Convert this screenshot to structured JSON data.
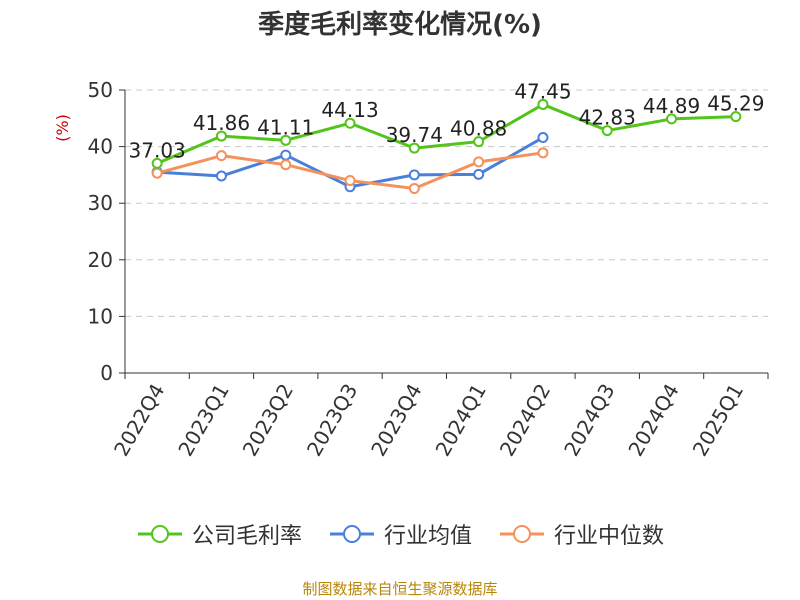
{
  "colors": {
    "gross_margin": "#52c41a",
    "industry_avg": "#4a7fdc",
    "industry_median": "#f5915a",
    "unit_label": "#cc0000",
    "source_text": "#b8860b"
  },
  "source": "制图数据来自恒生聚源数据库",
  "chart_data": {
    "type": "line",
    "title": "季度毛利率变化情况(%)",
    "ylabel": "(%)",
    "xlabel": "",
    "ylim": [
      0,
      50
    ],
    "yticks": [
      0,
      10,
      20,
      30,
      40,
      50
    ],
    "grid": true,
    "legend_position": "bottom",
    "categories": [
      "2022Q4",
      "2023Q1",
      "2023Q2",
      "2023Q3",
      "2023Q4",
      "2024Q1",
      "2024Q2",
      "2024Q3",
      "2024Q4",
      "2025Q1"
    ],
    "series": [
      {
        "name": "公司毛利率",
        "color": "#52c41a",
        "values": [
          37.03,
          41.86,
          41.11,
          44.13,
          39.74,
          40.88,
          47.45,
          42.83,
          44.89,
          45.29
        ],
        "labels": [
          "37.03",
          "41.86",
          "41.11",
          "44.13",
          "39.74",
          "40.88",
          "47.45",
          "42.83",
          "44.89",
          "45.29"
        ]
      },
      {
        "name": "行业均值",
        "color": "#4a7fdc",
        "values": [
          35.5,
          34.8,
          38.5,
          32.9,
          35.0,
          35.1,
          41.6,
          null,
          null,
          null
        ]
      },
      {
        "name": "行业中位数",
        "color": "#f5915a",
        "values": [
          35.3,
          38.4,
          36.8,
          34.0,
          32.6,
          37.3,
          38.9,
          null,
          null,
          null
        ]
      }
    ]
  }
}
